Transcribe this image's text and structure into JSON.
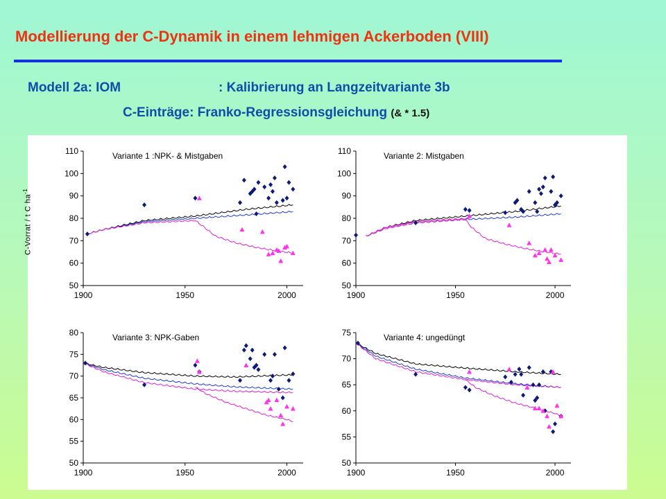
{
  "header": {
    "title": "Modellierung der C-Dynamik in einem lehmigen Ackerboden (VIII)",
    "line1_left": "Modell 2a: IOM",
    "line1_right": ": Kalibrierung an Langzeitvariante 3b",
    "line2_main": "C-Einträge: Franko-Regressionsgleichung",
    "line2_small": "(& * 1.5)"
  },
  "colors": {
    "title": "#ee3311",
    "subtitle": "#0f4ea8",
    "rule": "#1530e0",
    "model_black": "#000000",
    "model_blue": "#1a3ad8",
    "model_magenta": "#e020d0",
    "obs_diamond": "#0d1a7a",
    "obs_triangle": "#ff33ee"
  },
  "y_axis_label": "C-Vorrat / t C  ha",
  "y_axis_label_sup": "-1",
  "chart_data": [
    {
      "type": "line+scatter",
      "title": "Variante 1 :NPK- & Mistgaben",
      "xlim": [
        1900,
        2000
      ],
      "xticks": [
        1900,
        1950,
        2000
      ],
      "ylim": [
        50,
        110
      ],
      "yticks": [
        50,
        60,
        70,
        80,
        90,
        100,
        110
      ],
      "model_lines": [
        {
          "color": "black",
          "x": [
            1902,
            1910,
            1930,
            1955,
            1980,
            2003
          ],
          "y": [
            73,
            75,
            79,
            81,
            84,
            86
          ]
        },
        {
          "color": "blue",
          "x": [
            1902,
            1910,
            1930,
            1955,
            1980,
            2003
          ],
          "y": [
            73,
            75,
            78.5,
            80,
            81.5,
            83
          ]
        },
        {
          "color": "magenta",
          "x": [
            1902,
            1910,
            1930,
            1955,
            1958,
            1965,
            1975,
            1985,
            1995,
            2003
          ],
          "y": [
            73,
            75,
            78,
            79,
            77,
            72,
            69,
            67,
            65.5,
            64.5
          ]
        }
      ],
      "diamonds": [
        [
          1902,
          73
        ],
        [
          1930,
          86
        ],
        [
          1955,
          89
        ],
        [
          1977,
          87
        ],
        [
          1979,
          97
        ],
        [
          1982,
          91
        ],
        [
          1983,
          92
        ],
        [
          1984,
          93
        ],
        [
          1985,
          82
        ],
        [
          1986,
          96
        ],
        [
          1989,
          94
        ],
        [
          1991,
          89
        ],
        [
          1992,
          95
        ],
        [
          1993,
          92
        ],
        [
          1994,
          98
        ],
        [
          1995,
          87
        ],
        [
          1998,
          88
        ],
        [
          1999,
          103
        ],
        [
          2000,
          89
        ],
        [
          2001,
          96
        ],
        [
          2003,
          93
        ]
      ],
      "triangles": [
        [
          1957,
          89
        ],
        [
          1978,
          75
        ],
        [
          1988,
          74
        ],
        [
          1991,
          64
        ],
        [
          1993,
          64.5
        ],
        [
          1995,
          66
        ],
        [
          1996,
          65.5
        ],
        [
          1997,
          61
        ],
        [
          1999,
          67
        ],
        [
          2000,
          67.5
        ],
        [
          2003,
          64.5
        ]
      ]
    },
    {
      "type": "line+scatter",
      "title": "Variante 2: Mistgaben",
      "xlim": [
        1900,
        2000
      ],
      "xticks": [
        1900,
        1950,
        2000
      ],
      "ylim": [
        50,
        110
      ],
      "yticks": [
        50,
        60,
        70,
        80,
        90,
        100,
        110
      ],
      "model_lines": [
        {
          "color": "black",
          "x": [
            1905,
            1915,
            1930,
            1955,
            1980,
            2003
          ],
          "y": [
            72,
            76,
            79,
            81,
            83,
            85.5
          ]
        },
        {
          "color": "blue",
          "x": [
            1905,
            1915,
            1930,
            1955,
            1980,
            2003
          ],
          "y": [
            72,
            75.5,
            78,
            79.5,
            80.5,
            82
          ]
        },
        {
          "color": "magenta",
          "x": [
            1905,
            1915,
            1930,
            1955,
            1958,
            1965,
            1975,
            1985,
            1995,
            2003
          ],
          "y": [
            72,
            75.5,
            78,
            79.5,
            76,
            71,
            68.5,
            66.5,
            65,
            64
          ]
        },
        {
          "color": "magenta",
          "x": [
            1905,
            1915,
            1930,
            1957
          ],
          "y": [
            72,
            76,
            78.5,
            80
          ]
        }
      ],
      "diamonds": [
        [
          1900,
          72.5
        ],
        [
          1930,
          78
        ],
        [
          1955,
          84
        ],
        [
          1957,
          83.5
        ],
        [
          1975,
          82.5
        ],
        [
          1980,
          87
        ],
        [
          1981,
          88
        ],
        [
          1983,
          84
        ],
        [
          1984,
          83
        ],
        [
          1987,
          92
        ],
        [
          1990,
          87
        ],
        [
          1991,
          83
        ],
        [
          1992,
          93
        ],
        [
          1993,
          91
        ],
        [
          1994,
          94
        ],
        [
          1995,
          98
        ],
        [
          1998,
          92
        ],
        [
          1999,
          98.5
        ],
        [
          2000,
          86
        ],
        [
          2001,
          87
        ],
        [
          2003,
          90
        ]
      ],
      "triangles": [
        [
          1957,
          81
        ],
        [
          1977,
          77
        ],
        [
          1987,
          69
        ],
        [
          1990,
          63.5
        ],
        [
          1992,
          64.5
        ],
        [
          1995,
          66
        ],
        [
          1996,
          62
        ],
        [
          1997,
          60.5
        ],
        [
          1998,
          66
        ],
        [
          2000,
          63.5
        ],
        [
          2003,
          61.5
        ]
      ]
    },
    {
      "type": "line+scatter",
      "title": "Variante 3: NPK-Gaben",
      "xlim": [
        1900,
        2000
      ],
      "xticks": [
        1900,
        1950,
        2000
      ],
      "ylim": [
        50,
        80
      ],
      "yticks": [
        50,
        55,
        60,
        65,
        70,
        75,
        80
      ],
      "model_lines": [
        {
          "color": "black",
          "x": [
            1900,
            1910,
            1930,
            1955,
            1975,
            2003
          ],
          "y": [
            73,
            72,
            70.8,
            70,
            69.8,
            70.3
          ]
        },
        {
          "color": "blue",
          "x": [
            1900,
            1910,
            1930,
            1955,
            1975,
            2003
          ],
          "y": [
            73,
            71.5,
            69.5,
            68.2,
            67.5,
            67
          ]
        },
        {
          "color": "magenta",
          "x": [
            1900,
            1910,
            1930,
            1955,
            1975,
            2003
          ],
          "y": [
            73,
            71,
            68.5,
            67,
            66.5,
            66.2
          ]
        },
        {
          "color": "magenta",
          "x": [
            1955,
            1960,
            1970,
            1980,
            1990,
            2000,
            2003
          ],
          "y": [
            67.5,
            66,
            64,
            62.5,
            61,
            60,
            59.5
          ]
        }
      ],
      "diamonds": [
        [
          1901,
          73
        ],
        [
          1930,
          68
        ],
        [
          1955,
          72.5
        ],
        [
          1957,
          71
        ],
        [
          1977,
          69
        ],
        [
          1979,
          76
        ],
        [
          1980,
          77
        ],
        [
          1982,
          74
        ],
        [
          1983,
          76
        ],
        [
          1984,
          72
        ],
        [
          1985,
          72.5
        ],
        [
          1986,
          71.5
        ],
        [
          1989,
          75
        ],
        [
          1992,
          69
        ],
        [
          1993,
          70
        ],
        [
          1994,
          75
        ],
        [
          1996,
          67
        ],
        [
          1998,
          65
        ],
        [
          1999,
          76.5
        ],
        [
          2001,
          69
        ],
        [
          2003,
          70.5
        ]
      ],
      "triangles": [
        [
          1956,
          73.5
        ],
        [
          1957,
          71
        ],
        [
          1980,
          72.5
        ],
        [
          1990,
          64
        ],
        [
          1991,
          64.5
        ],
        [
          1992,
          62.5
        ],
        [
          1995,
          64.5
        ],
        [
          1997,
          61
        ],
        [
          1998,
          59
        ],
        [
          2000,
          63
        ],
        [
          2003,
          62.5
        ]
      ]
    },
    {
      "type": "line+scatter",
      "title": "Variante 4: ungedüngt",
      "xlim": [
        1900,
        2000
      ],
      "xticks": [
        1900,
        1950,
        2000
      ],
      "ylim": [
        50,
        75
      ],
      "yticks": [
        50,
        55,
        60,
        65,
        70,
        75
      ],
      "model_lines": [
        {
          "color": "black",
          "x": [
            1900,
            1910,
            1930,
            1955,
            1980,
            2003
          ],
          "y": [
            73,
            71,
            69,
            68.2,
            67.5,
            67
          ]
        },
        {
          "color": "blue",
          "x": [
            1900,
            1910,
            1930,
            1955,
            1980,
            2003
          ],
          "y": [
            73,
            70.5,
            68,
            66.3,
            65.2,
            64.5
          ]
        },
        {
          "color": "magenta",
          "x": [
            1900,
            1910,
            1930,
            1955,
            1980,
            2003
          ],
          "y": [
            73,
            70,
            67.5,
            66,
            65,
            64.5
          ]
        },
        {
          "color": "magenta",
          "x": [
            1955,
            1960,
            1970,
            1980,
            1990,
            2000,
            2003
          ],
          "y": [
            66,
            64.5,
            62.8,
            61.5,
            60.5,
            59.5,
            59
          ]
        }
      ],
      "diamonds": [
        [
          1901,
          73
        ],
        [
          1930,
          67
        ],
        [
          1955,
          64.5
        ],
        [
          1957,
          64
        ],
        [
          1975,
          66.5
        ],
        [
          1978,
          65.5
        ],
        [
          1980,
          67
        ],
        [
          1982,
          68
        ],
        [
          1983,
          67
        ],
        [
          1984,
          63
        ],
        [
          1987,
          68.3
        ],
        [
          1989,
          65
        ],
        [
          1990,
          62
        ],
        [
          1991,
          62.5
        ],
        [
          1992,
          65
        ],
        [
          1994,
          67.5
        ],
        [
          1995,
          60
        ],
        [
          1998,
          67.5
        ],
        [
          1999,
          56
        ],
        [
          2000,
          57.5
        ],
        [
          2003,
          59
        ]
      ],
      "triangles": [
        [
          1957,
          67.5
        ],
        [
          1977,
          68
        ],
        [
          1986,
          64.5
        ],
        [
          1990,
          60.5
        ],
        [
          1992,
          60.5
        ],
        [
          1994,
          60
        ],
        [
          1996,
          59
        ],
        [
          1997,
          57
        ],
        [
          1999,
          67.5
        ],
        [
          2001,
          61
        ],
        [
          2003,
          59
        ]
      ]
    }
  ]
}
